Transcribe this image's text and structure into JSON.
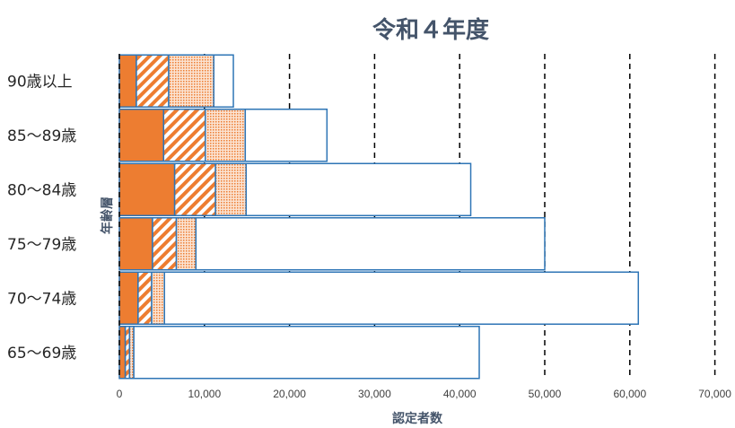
{
  "chart_data": {
    "type": "bar",
    "orientation": "horizontal",
    "stacked": true,
    "title": "令和４年度",
    "xlabel": "認定者数",
    "ylabel": "年齢層",
    "categories": [
      "90歳以上",
      "85～89歳",
      "80～84歳",
      "75～79歳",
      "70～74歳",
      "65～69歳"
    ],
    "xlim": [
      0,
      70000
    ],
    "xticks": [
      0,
      10000,
      20000,
      30000,
      40000,
      50000,
      60000,
      70000
    ],
    "xtick_labels": [
      "0",
      "10,000",
      "20,000",
      "30,000",
      "40,000",
      "50,000",
      "60,000",
      "70,000"
    ],
    "grid": "vertical dashed",
    "legend": "none",
    "series": [
      {
        "values": [
          2000,
          5200,
          6500,
          3900,
          2200,
          700
        ],
        "pattern": "solid",
        "color": "#ed7d31"
      },
      {
        "values": [
          3800,
          4900,
          4800,
          2800,
          1600,
          500
        ],
        "pattern": "diagonal",
        "color": "#ed7d31"
      },
      {
        "values": [
          5300,
          4700,
          3600,
          2300,
          1500,
          500
        ],
        "pattern": "dotted",
        "color": "#ed7d31"
      },
      {
        "values": [
          2300,
          9600,
          26400,
          41000,
          55700,
          40600
        ],
        "pattern": "none",
        "color": "#2e75b6"
      }
    ]
  }
}
